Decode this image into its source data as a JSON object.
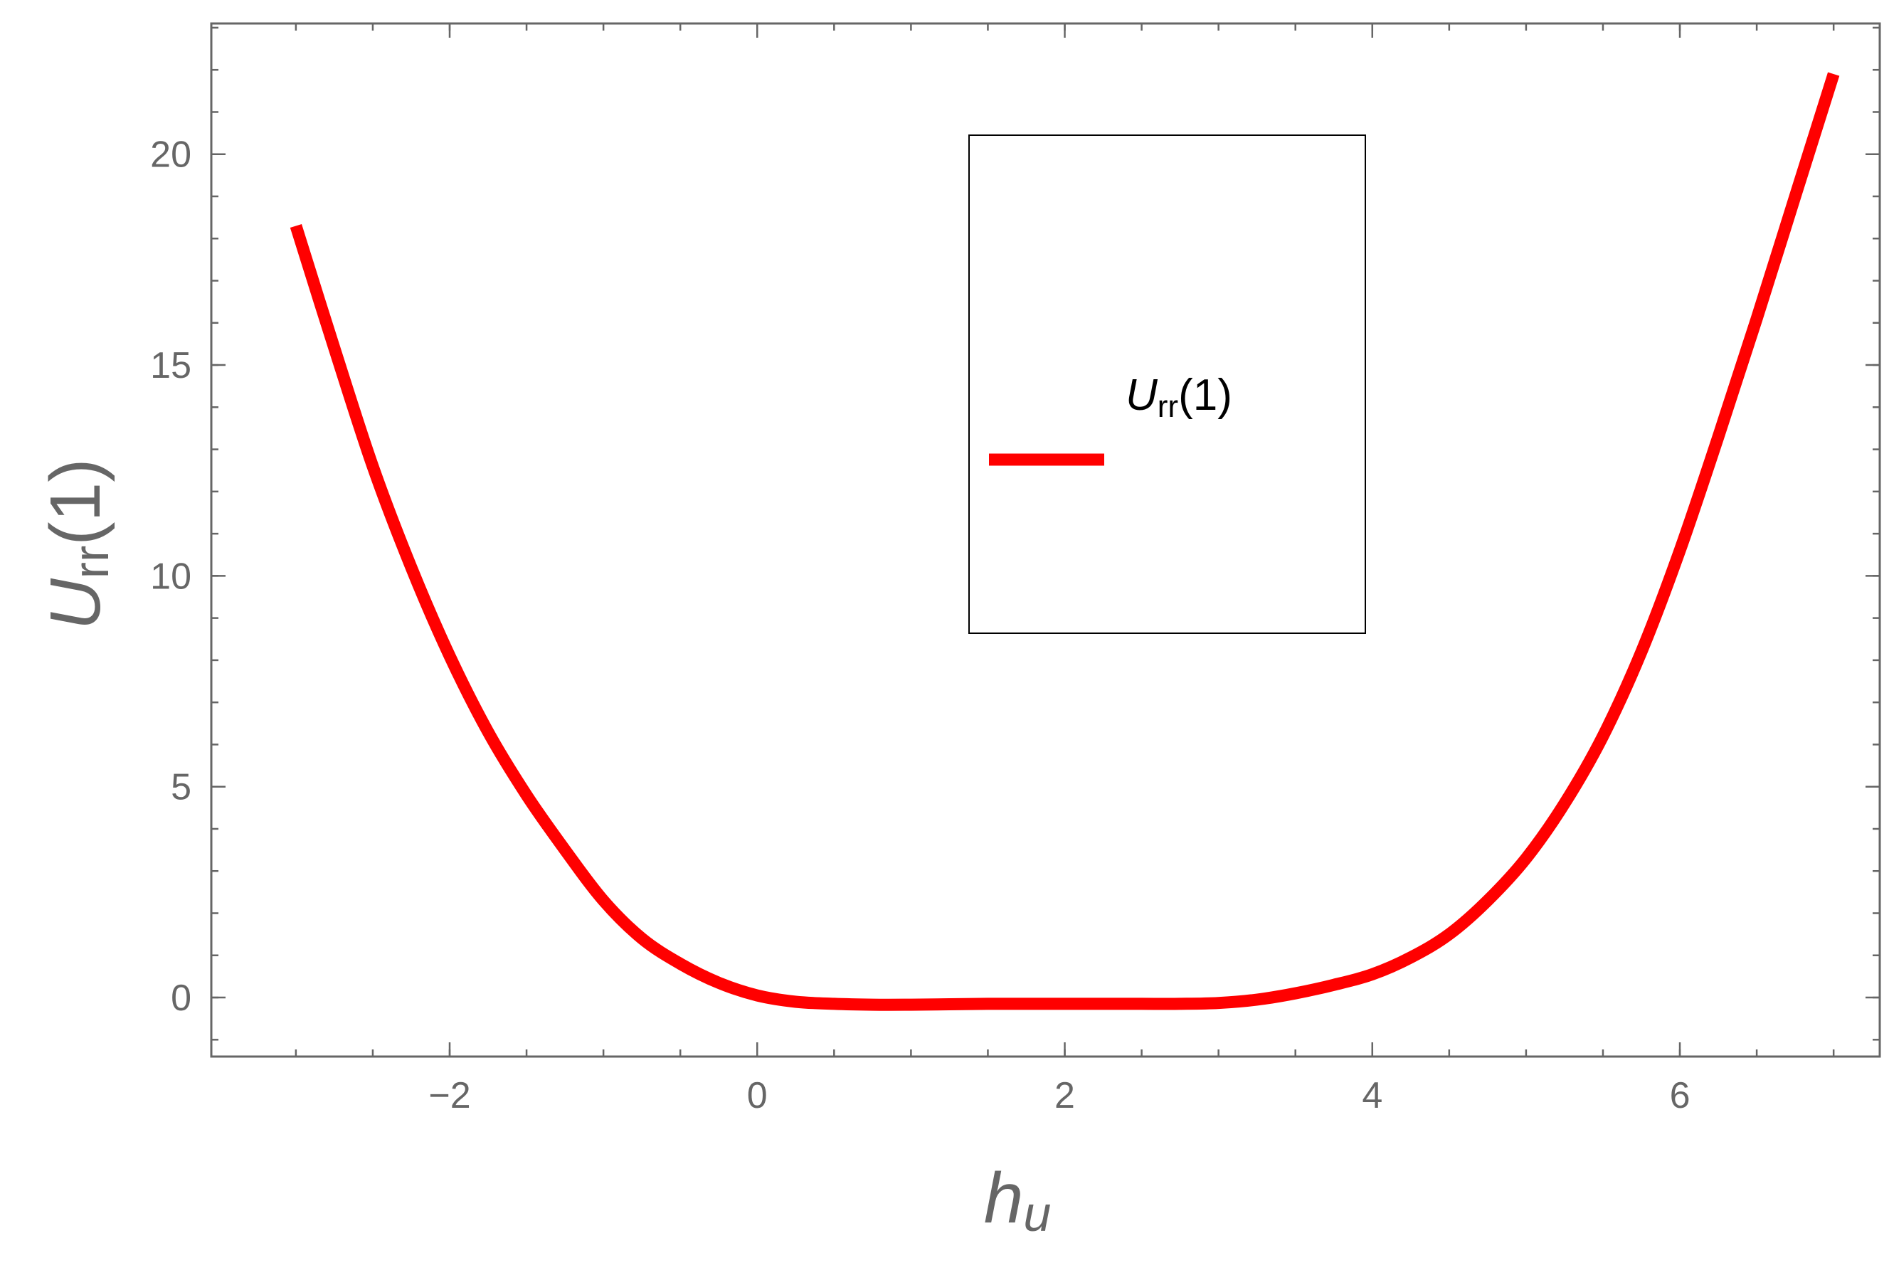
{
  "chart_data": {
    "type": "line",
    "xlabel": {
      "main": "h",
      "sub": "u"
    },
    "ylabel": {
      "main": "U",
      "sub": "rr",
      "suffix": "(1)"
    },
    "xlim": [
      -3.55,
      7.3
    ],
    "ylim": [
      -1.4,
      23.1
    ],
    "x_ticks": [
      -2,
      0,
      2,
      4,
      6
    ],
    "x_tick_labels": [
      "−2",
      "0",
      "2",
      "4",
      "6"
    ],
    "y_ticks": [
      0,
      5,
      10,
      15,
      20
    ],
    "y_tick_labels": [
      "0",
      "5",
      "10",
      "15",
      "20"
    ],
    "x_minor_step": 0.5,
    "y_minor_step": 1,
    "grid": false,
    "legend": {
      "placement": "center",
      "label_main": "U",
      "label_sub": "rr",
      "label_suffix": "(1)"
    },
    "series": [
      {
        "name": "U_rr(1)",
        "color": "#ff0000",
        "x": [
          -3.0,
          -2.75,
          -2.5,
          -2.25,
          -2.0,
          -1.75,
          -1.5,
          -1.25,
          -1.0,
          -0.75,
          -0.5,
          -0.25,
          0.0,
          0.25,
          0.5,
          0.75,
          1.0,
          1.25,
          1.5,
          1.75,
          2.0,
          2.25,
          2.5,
          2.75,
          3.0,
          3.25,
          3.5,
          3.75,
          4.0,
          4.25,
          4.5,
          4.75,
          5.0,
          5.25,
          5.5,
          5.75,
          6.0,
          6.25,
          6.5,
          6.75,
          7.0
        ],
        "y": [
          18.3,
          15.4,
          12.6,
          10.2,
          8.1,
          6.3,
          4.8,
          3.5,
          2.3,
          1.4,
          0.8,
          0.35,
          0.05,
          -0.1,
          -0.15,
          -0.17,
          -0.17,
          -0.16,
          -0.15,
          -0.15,
          -0.15,
          -0.15,
          -0.15,
          -0.15,
          -0.13,
          -0.05,
          0.1,
          0.3,
          0.55,
          0.95,
          1.5,
          2.3,
          3.3,
          4.6,
          6.2,
          8.2,
          10.6,
          13.3,
          16.1,
          19.0,
          21.9
        ]
      }
    ]
  }
}
